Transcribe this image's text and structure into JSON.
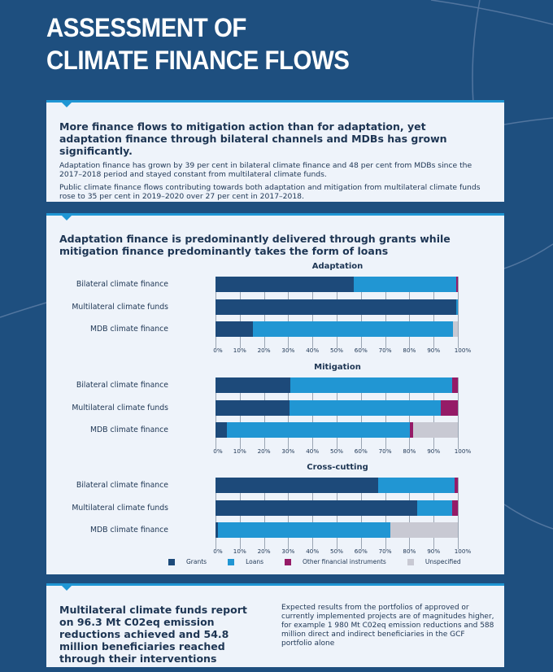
{
  "header": {
    "title_line1": "ASSESSMENT OF",
    "title_line2": "CLIMATE FINANCE FLOWS"
  },
  "panel1": {
    "heading": "More finance flows to mitigation action than for adaptation, yet adaptation finance through bilateral channels and MDBs has grown significantly.",
    "paragraphs": [
      "Adaptation finance has grown by 39 per cent in bilateral climate finance and 48 per cent from MDBs since the 2017–2018 period and stayed constant from multilateral climate funds.",
      "Public climate finance flows contributing towards both adaptation and mitigation from multilateral climate funds rose to 35 per cent in 2019–2020 over 27 per cent in 2017–2018."
    ]
  },
  "panel2": {
    "heading": "Adaptation finance is predominantly delivered through grants while mitigation finance predominantly takes the form of loans"
  },
  "colors": {
    "Grants": "#1d4a7a",
    "Loans": "#2196d3",
    "Other financial instruments": "#951b67",
    "Unspecified": "#c8c9d3",
    "background": "#1e4f7f",
    "accent": "#1f96d4"
  },
  "legend": [
    "Grants",
    "Loans",
    "Other financial instruments",
    "Unspecified"
  ],
  "ticks": [
    "0%",
    "10%",
    "20%",
    "30%",
    "40%",
    "50%",
    "60%",
    "70%",
    "80%",
    "90%",
    "100%"
  ],
  "chart_data": [
    {
      "type": "bar",
      "orientation": "horizontal",
      "stacked": true,
      "title": "Adaptation",
      "xlim": [
        0,
        100
      ],
      "unit": "%",
      "categories": [
        "Bilateral climate finance",
        "Multilateral climate funds",
        "MDB climate finance"
      ],
      "series": [
        {
          "name": "Grants",
          "values": [
            57,
            99.4,
            15.3
          ]
        },
        {
          "name": "Loans",
          "values": [
            42.4,
            0.6,
            82.7
          ]
        },
        {
          "name": "Other financial instruments",
          "values": [
            0.6,
            0,
            0
          ]
        },
        {
          "name": "Unspecified",
          "values": [
            0,
            0,
            2
          ]
        }
      ]
    },
    {
      "type": "bar",
      "orientation": "horizontal",
      "stacked": true,
      "title": "Mitigation",
      "xlim": [
        0,
        100
      ],
      "unit": "%",
      "categories": [
        "Bilateral climate finance",
        "Multilateral climate funds",
        "MDB climate finance"
      ],
      "series": [
        {
          "name": "Grants",
          "values": [
            31,
            30.4,
            4.7
          ]
        },
        {
          "name": "Loans",
          "values": [
            66.5,
            62.4,
            75.4
          ]
        },
        {
          "name": "Other financial instruments",
          "values": [
            2.5,
            7.2,
            1.4
          ]
        },
        {
          "name": "Unspecified",
          "values": [
            0,
            0,
            18.5
          ]
        }
      ]
    },
    {
      "type": "bar",
      "orientation": "horizontal",
      "stacked": true,
      "title": "Cross-cutting",
      "xlim": [
        0,
        100
      ],
      "unit": "%",
      "categories": [
        "Bilateral climate finance",
        "Multilateral climate funds",
        "MDB climate finance"
      ],
      "series": [
        {
          "name": "Grants",
          "values": [
            67,
            83.1,
            0.9
          ]
        },
        {
          "name": "Loans",
          "values": [
            31.8,
            14.4,
            71.4
          ]
        },
        {
          "name": "Other financial instruments",
          "values": [
            1.2,
            2.5,
            0
          ]
        },
        {
          "name": "Unspecified",
          "values": [
            0,
            0,
            27.7
          ]
        }
      ]
    }
  ],
  "panel3": {
    "heading": "Multilateral climate funds report on 96.3 Mt C02eq emission reductions achieved and 54.8 million beneficiaries reached through their interventions",
    "text": "Expected results from the portfolios of approved or currently implemented projects are of magnitudes higher, for example 1 980 Mt C02eq emission reductions and 588 million direct and indirect beneficiaries in the GCF portfolio alone"
  }
}
